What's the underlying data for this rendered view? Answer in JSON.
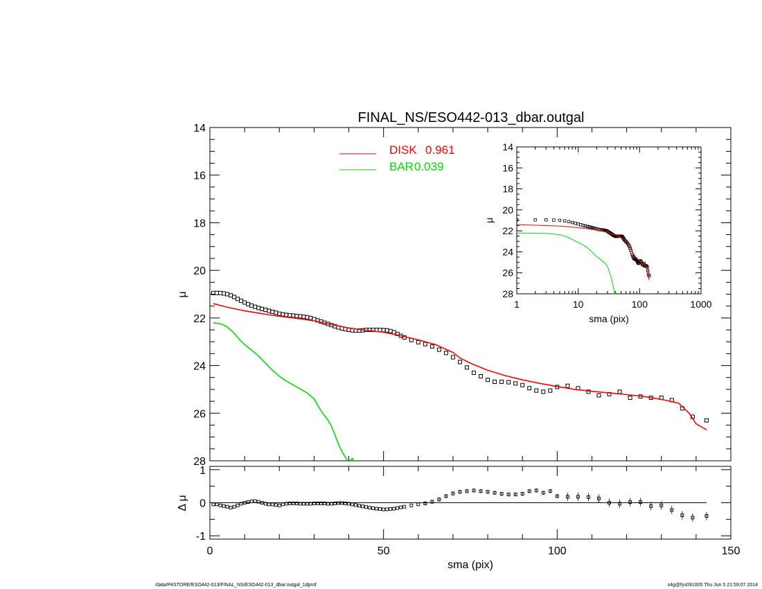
{
  "chart_data": {
    "title": "FINAL_NS/ESO442-013_dbar.outgal",
    "main_panel": {
      "type": "scatter",
      "xlabel": "",
      "ylabel": "μ",
      "xlim": [
        0,
        150
      ],
      "ylim": [
        28,
        14
      ],
      "y_inverted": true,
      "yticks": [
        "14",
        "16",
        "18",
        "20",
        "22",
        "24",
        "26",
        "28"
      ],
      "legend_position": "top-center",
      "legend": [
        {
          "label": "DISK",
          "value": "0.961",
          "color": "#ff0000"
        },
        {
          "label": "BAR",
          "value": "0.039",
          "color": "#00dd00"
        }
      ],
      "series": [
        {
          "name": "data",
          "style": "square-markers",
          "color": "#000000",
          "x": [
            1,
            2,
            3,
            4,
            5,
            6,
            7,
            8,
            9,
            10,
            11,
            12,
            13,
            14,
            15,
            16,
            17,
            18,
            19,
            20,
            21,
            22,
            23,
            24,
            25,
            26,
            27,
            28,
            29,
            30,
            31,
            32,
            33,
            34,
            35,
            36,
            37,
            38,
            39,
            40,
            41,
            42,
            43,
            44,
            45,
            46,
            47,
            48,
            49,
            50,
            51,
            52,
            53,
            54,
            55,
            56,
            58,
            60,
            62,
            64,
            66,
            68,
            70,
            72,
            74,
            76,
            78,
            80,
            82,
            84,
            86,
            88,
            90,
            92,
            94,
            96,
            98,
            100,
            103,
            106,
            109,
            112,
            115,
            118,
            121,
            124,
            127,
            130,
            133,
            136,
            139,
            143
          ],
          "y": [
            20.95,
            20.95,
            20.95,
            20.97,
            21.0,
            21.05,
            21.12,
            21.2,
            21.28,
            21.35,
            21.42,
            21.48,
            21.53,
            21.58,
            21.62,
            21.66,
            21.7,
            21.74,
            21.78,
            21.82,
            21.85,
            21.87,
            21.89,
            21.9,
            21.92,
            21.93,
            21.95,
            21.97,
            22.0,
            22.05,
            22.1,
            22.15,
            22.2,
            22.25,
            22.3,
            22.35,
            22.4,
            22.44,
            22.47,
            22.5,
            22.52,
            22.53,
            22.53,
            22.52,
            22.5,
            22.5,
            22.5,
            22.5,
            22.5,
            22.51,
            22.52,
            22.55,
            22.6,
            22.67,
            22.75,
            22.82,
            22.93,
            23.02,
            23.1,
            23.2,
            23.33,
            23.47,
            23.65,
            23.85,
            24.08,
            24.3,
            24.45,
            24.6,
            24.68,
            24.68,
            24.7,
            24.75,
            24.82,
            24.95,
            25.05,
            25.1,
            25.05,
            24.9,
            24.85,
            24.95,
            25.1,
            25.25,
            25.2,
            25.1,
            25.35,
            25.3,
            25.35,
            25.35,
            25.45,
            25.8,
            26.15,
            26.3
          ]
        },
        {
          "name": "DISK",
          "style": "line",
          "color": "#ff0000",
          "x": [
            1,
            5,
            10,
            15,
            20,
            25,
            30,
            35,
            40,
            45,
            50,
            55,
            60,
            65,
            70,
            72,
            75,
            80,
            85,
            90,
            95,
            100,
            105,
            110,
            115,
            120,
            125,
            130,
            135,
            138,
            140,
            143
          ],
          "y": [
            21.4,
            21.55,
            21.7,
            21.82,
            21.93,
            22.02,
            22.12,
            22.28,
            22.42,
            22.52,
            22.6,
            22.75,
            22.92,
            23.12,
            23.45,
            23.68,
            23.9,
            24.2,
            24.42,
            24.6,
            24.75,
            24.88,
            25.0,
            25.08,
            25.15,
            25.22,
            25.3,
            25.42,
            25.58,
            26.0,
            26.45,
            26.7
          ]
        },
        {
          "name": "BAR",
          "style": "line",
          "color": "#00dd00",
          "x": [
            1,
            2,
            3,
            4,
            5,
            6,
            7,
            8,
            9,
            10,
            12,
            14,
            16,
            18,
            20,
            22,
            24,
            26,
            28,
            30,
            32,
            33,
            34,
            35,
            36,
            37,
            38,
            39,
            40,
            41,
            42
          ],
          "y": [
            22.2,
            22.22,
            22.25,
            22.3,
            22.38,
            22.5,
            22.65,
            22.82,
            22.98,
            23.12,
            23.35,
            23.6,
            23.9,
            24.2,
            24.45,
            24.65,
            24.82,
            24.98,
            25.15,
            25.4,
            25.9,
            26.1,
            26.3,
            26.55,
            26.9,
            27.3,
            27.6,
            27.85,
            28.05,
            27.9,
            28.1
          ]
        }
      ]
    },
    "inset_panel": {
      "type": "scatter",
      "xlabel": "sma (pix)",
      "ylabel": "μ",
      "x_scale": "log",
      "xlim": [
        1,
        1000
      ],
      "ylim": [
        28,
        14
      ],
      "y_inverted": true,
      "xticks": [
        "1",
        "10",
        "100",
        "1000"
      ],
      "yticks": [
        "14",
        "16",
        "18",
        "20",
        "22",
        "24",
        "26",
        "28"
      ]
    },
    "residual_panel": {
      "type": "scatter",
      "xlabel": "sma (pix)",
      "ylabel": "Δ μ",
      "xlim": [
        0,
        150
      ],
      "ylim": [
        -1.1,
        1.1
      ],
      "xticks": [
        "0",
        "50",
        "100",
        "150"
      ],
      "yticks": [
        "1",
        "0",
        "-1"
      ],
      "series": [
        {
          "name": "residual",
          "style": "square-markers",
          "color": "#000000",
          "x": [
            1,
            2,
            3,
            4,
            5,
            6,
            7,
            8,
            9,
            10,
            11,
            12,
            13,
            14,
            15,
            16,
            17,
            18,
            19,
            20,
            21,
            22,
            23,
            24,
            25,
            26,
            27,
            28,
            29,
            30,
            31,
            32,
            33,
            34,
            35,
            36,
            37,
            38,
            39,
            40,
            41,
            42,
            43,
            44,
            45,
            46,
            47,
            48,
            49,
            50,
            51,
            52,
            53,
            54,
            55,
            56,
            58,
            60,
            62,
            64,
            66,
            68,
            70,
            72,
            74,
            76,
            78,
            80,
            82,
            84,
            86,
            88,
            90,
            92,
            94,
            96,
            98,
            100,
            103,
            106,
            109,
            112,
            115,
            118,
            121,
            124,
            127,
            130,
            133,
            136,
            139,
            143
          ],
          "y": [
            -0.05,
            -0.05,
            -0.08,
            -0.1,
            -0.12,
            -0.15,
            -0.12,
            -0.08,
            -0.03,
            0.0,
            0.02,
            0.04,
            0.05,
            0.03,
            0.0,
            -0.03,
            -0.05,
            -0.05,
            -0.07,
            -0.08,
            -0.05,
            -0.03,
            -0.02,
            -0.02,
            -0.02,
            -0.03,
            -0.03,
            -0.03,
            -0.03,
            -0.02,
            -0.02,
            -0.02,
            -0.02,
            -0.03,
            -0.03,
            -0.02,
            -0.01,
            -0.01,
            -0.02,
            -0.03,
            -0.05,
            -0.07,
            -0.09,
            -0.11,
            -0.13,
            -0.15,
            -0.17,
            -0.18,
            -0.19,
            -0.2,
            -0.2,
            -0.19,
            -0.18,
            -0.16,
            -0.14,
            -0.12,
            -0.08,
            -0.05,
            -0.02,
            0.03,
            0.1,
            0.2,
            0.28,
            0.33,
            0.35,
            0.37,
            0.35,
            0.33,
            0.3,
            0.27,
            0.25,
            0.25,
            0.27,
            0.35,
            0.37,
            0.3,
            0.35,
            0.2,
            0.18,
            0.18,
            0.17,
            0.13,
            0.0,
            -0.03,
            0.02,
            0.02,
            -0.1,
            -0.08,
            -0.22,
            -0.38,
            -0.45,
            -0.4
          ]
        }
      ]
    }
  },
  "footer": {
    "left": "/data/P4STORE/ESO442-013/FINAL_NS/ESO442-013_dbar.outgal_1dprof",
    "right": "s4g@fys091005  Thu Jun  5 21:59:07 2014"
  }
}
